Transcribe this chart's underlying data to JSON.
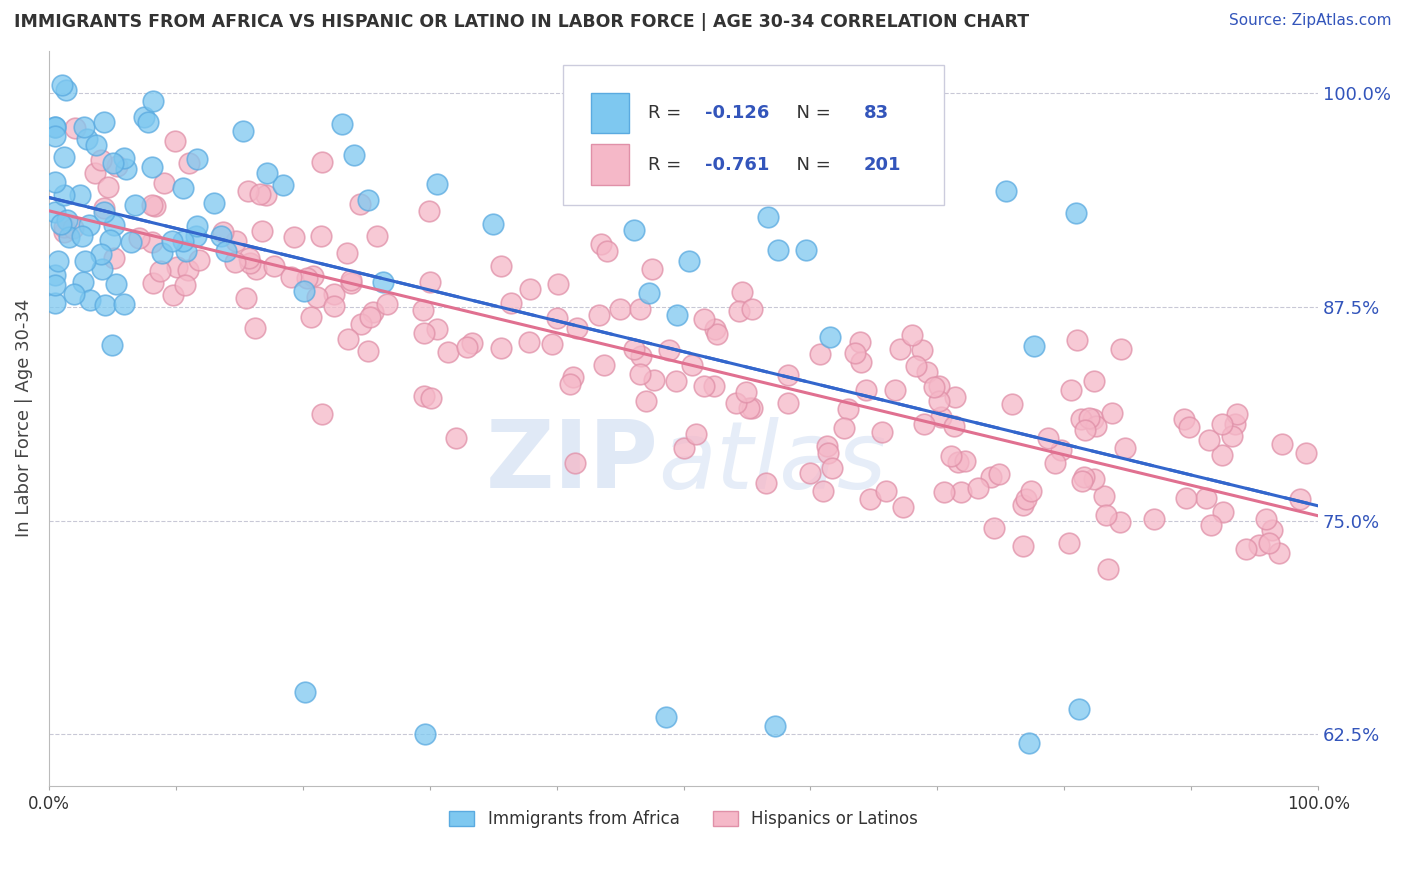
{
  "title": "IMMIGRANTS FROM AFRICA VS HISPANIC OR LATINO IN LABOR FORCE | AGE 30-34 CORRELATION CHART",
  "source_text": "Source: ZipAtlas.com",
  "ylabel": "In Labor Force | Age 30-34",
  "watermark_part1": "ZIP",
  "watermark_part2": "atlas",
  "legend_label_1": "Immigrants from Africa",
  "legend_label_2": "Hispanics or Latinos",
  "R1": -0.126,
  "N1": 83,
  "R2": -0.761,
  "N2": 201,
  "color_blue": "#7EC8F0",
  "color_blue_edge": "#5AAAE0",
  "color_pink": "#F5B8C8",
  "color_pink_edge": "#E090A8",
  "color_blue_line": "#3366CC",
  "color_pink_line": "#E07090",
  "color_blue_dash": "#88AADD",
  "ytick_labels": [
    "62.5%",
    "75.0%",
    "87.5%",
    "100.0%"
  ],
  "ytick_values": [
    0.625,
    0.75,
    0.875,
    1.0
  ],
  "xlim": [
    0.0,
    1.0
  ],
  "ylim": [
    0.595,
    1.025
  ],
  "seed_blue": 12,
  "seed_pink": 99
}
